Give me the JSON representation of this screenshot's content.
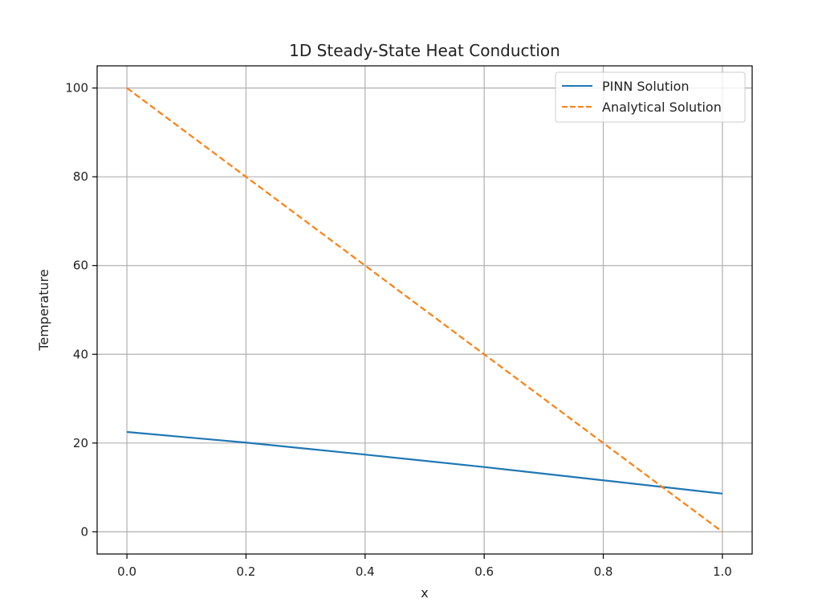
{
  "chart_data": {
    "type": "line",
    "title": "1D Steady-State Heat Conduction",
    "xlabel": "x",
    "ylabel": "Temperature",
    "xlim": [
      -0.05,
      1.05
    ],
    "ylim": [
      -5,
      105
    ],
    "xticks": [
      0.0,
      0.2,
      0.4,
      0.6,
      0.8,
      1.0
    ],
    "xtick_labels": [
      "0.0",
      "0.2",
      "0.4",
      "0.6",
      "0.8",
      "1.0"
    ],
    "yticks": [
      0,
      20,
      40,
      60,
      80,
      100
    ],
    "ytick_labels": [
      "0",
      "20",
      "40",
      "60",
      "80",
      "100"
    ],
    "grid": true,
    "legend_position": "top-right",
    "series": [
      {
        "name": "PINN Solution",
        "color": "#1f77b4",
        "style": "solid",
        "x": [
          0.0,
          0.2,
          0.4,
          0.6,
          0.8,
          1.0
        ],
        "y": [
          22.5,
          20.1,
          17.4,
          14.6,
          11.6,
          8.6
        ]
      },
      {
        "name": "Analytical Solution",
        "color": "#ff7f0e",
        "style": "dashed",
        "x": [
          0.0,
          0.2,
          0.4,
          0.6,
          0.8,
          1.0
        ],
        "y": [
          100,
          80,
          60,
          40,
          20,
          0
        ]
      }
    ]
  }
}
